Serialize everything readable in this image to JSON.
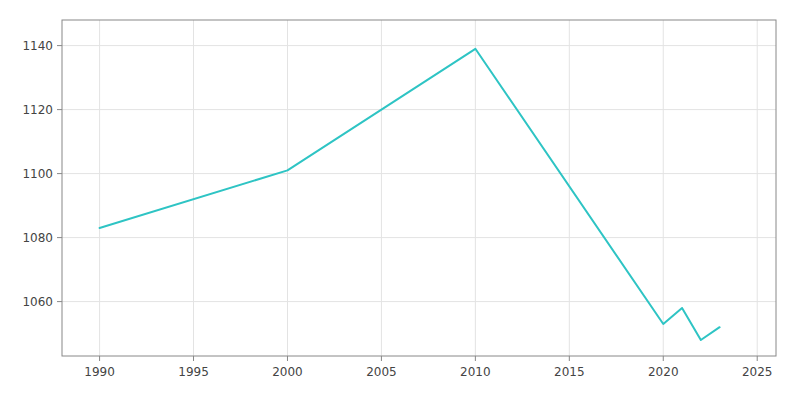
{
  "chart_data": {
    "type": "line",
    "x": [
      1990,
      2000,
      2010,
      2020,
      2021,
      2022,
      2023
    ],
    "values": [
      1083,
      1101,
      1139,
      1053,
      1058,
      1048,
      1052
    ],
    "color": "#2EC4C4",
    "xlim": [
      1988,
      2026
    ],
    "ylim": [
      1043,
      1148
    ],
    "xticks": [
      1990,
      1995,
      2000,
      2005,
      2010,
      2015,
      2020,
      2025
    ],
    "yticks": [
      1060,
      1080,
      1100,
      1120,
      1140
    ],
    "grid": true
  }
}
